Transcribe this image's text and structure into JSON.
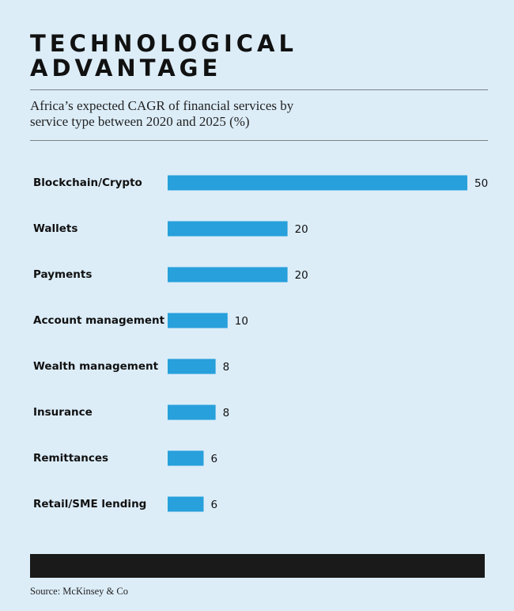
{
  "chart_data": {
    "type": "hbar",
    "title": "TECHNOLOGICAL ADVANTAGE",
    "subtitle": "Africa’s expected CAGR of financial services by service type between 2020 and 2025 (%)",
    "categories": [
      "Blockchain/Crypto",
      "Wallets",
      "Payments",
      "Account management",
      "Wealth management",
      "Insurance",
      "Remittances",
      "Retail/SME lending"
    ],
    "values": [
      50,
      20,
      20,
      10,
      8,
      8,
      6,
      6
    ],
    "color": "#27a0dc",
    "xlim": [
      0,
      50
    ],
    "source": "Source: McKinsey & Co"
  }
}
